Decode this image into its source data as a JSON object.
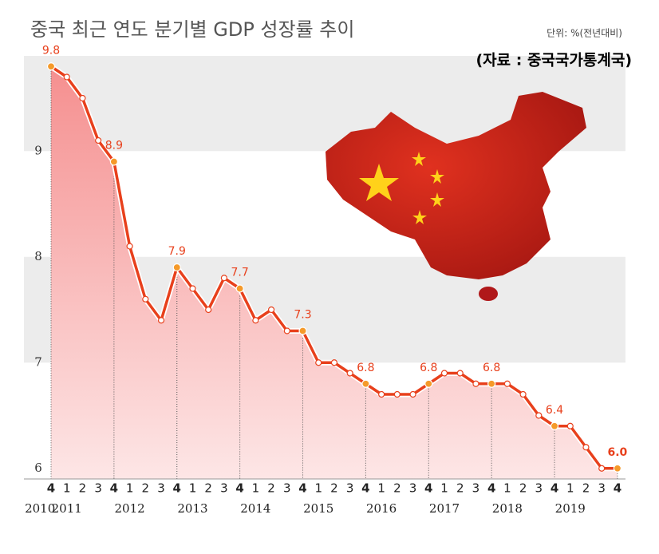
{
  "chart_data": {
    "type": "line",
    "title": "중국 최근 연도 분기별 GDP 성장률 추이",
    "unit": "단위: %(전년대비)",
    "source": "(자료 : 중국국가통계국)",
    "categories": [
      "4",
      "1",
      "2",
      "3",
      "4",
      "1",
      "2",
      "3",
      "4",
      "1",
      "2",
      "3",
      "4",
      "1",
      "2",
      "3",
      "4",
      "1",
      "2",
      "3",
      "4",
      "1",
      "2",
      "3",
      "4",
      "1",
      "2",
      "3",
      "4",
      "1",
      "2",
      "3",
      "4",
      "1",
      "2",
      "3",
      "4"
    ],
    "years": [
      "2010",
      "2011",
      "2012",
      "2013",
      "2014",
      "2015",
      "2016",
      "2017",
      "2018",
      "2019"
    ],
    "series": [
      {
        "name": "GDP 성장률",
        "color": "#e8401c",
        "values": [
          9.8,
          9.7,
          9.5,
          9.1,
          8.9,
          8.1,
          7.6,
          7.4,
          7.9,
          7.7,
          7.5,
          7.8,
          7.7,
          7.4,
          7.5,
          7.3,
          7.3,
          7.0,
          7.0,
          6.9,
          6.8,
          6.7,
          6.7,
          6.7,
          6.8,
          6.9,
          6.9,
          6.8,
          6.8,
          6.8,
          6.7,
          6.5,
          6.4,
          6.4,
          6.2,
          6.0,
          6.0
        ],
        "value_labels": [
          "9.8",
          null,
          null,
          null,
          "8.9",
          null,
          null,
          null,
          "7.9",
          null,
          null,
          null,
          "7.7",
          null,
          null,
          null,
          "7.3",
          null,
          null,
          null,
          "6.8",
          null,
          null,
          null,
          "6.8",
          null,
          null,
          null,
          "6.8",
          null,
          null,
          null,
          "6.4",
          null,
          null,
          null,
          "6.0"
        ]
      }
    ],
    "ylim": [
      5.9,
      9.9
    ],
    "yticks": [
      6,
      7,
      8,
      9
    ],
    "grid": "bands"
  }
}
